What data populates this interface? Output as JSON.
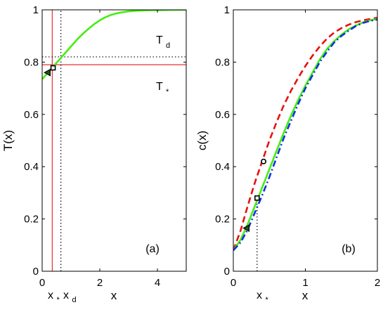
{
  "chart_data": [
    {
      "panel_label": "(a)",
      "type": "line",
      "xlabel": "x",
      "ylabel": "T(x)",
      "xlim": [
        0,
        5
      ],
      "ylim": [
        0,
        1
      ],
      "x_ticks": [
        0,
        2,
        4
      ],
      "y_ticks": [
        0,
        0.2,
        0.4,
        0.6,
        0.8,
        1
      ],
      "series": [
        {
          "name": "",
          "color": "#44ee11",
          "style": "solid",
          "x": [
            0,
            0.2,
            0.4,
            0.6,
            0.8,
            1,
            1.2,
            1.4,
            1.6,
            1.8,
            2,
            2.2,
            2.4,
            2.6,
            2.8,
            3,
            3.2,
            3.4,
            3.6,
            3.8,
            4,
            4.5,
            5
          ],
          "y": [
            0.735,
            0.76,
            0.785,
            0.81,
            0.835,
            0.86,
            0.885,
            0.907,
            0.927,
            0.945,
            0.96,
            0.972,
            0.981,
            0.987,
            0.991,
            0.994,
            0.996,
            0.997,
            0.998,
            0.999,
            0.999,
            1.0,
            1.0
          ]
        }
      ],
      "reference_lines": [
        {
          "orientation": "horizontal",
          "value": 0.79,
          "color": "#e03030",
          "style": "solid"
        },
        {
          "orientation": "vertical",
          "value": 0.35,
          "color": "#e03030",
          "style": "solid"
        },
        {
          "orientation": "horizontal",
          "value": 0.82,
          "color": "#000000",
          "style": "dotted"
        },
        {
          "orientation": "vertical",
          "value": 0.65,
          "color": "#000000",
          "style": "dotted"
        }
      ],
      "markers": [
        {
          "shape": "square",
          "x": 0.38,
          "y": 0.778
        },
        {
          "shape": "triangle",
          "x": 0.18,
          "y": 0.76
        }
      ],
      "annotations": {
        "T_d": {
          "base": "T",
          "sub": "d"
        },
        "T_star": {
          "base": "T",
          "sub": "*"
        },
        "x_star": {
          "base": "x",
          "sub": "*"
        },
        "x_d": {
          "base": "x",
          "sub": "d"
        }
      }
    },
    {
      "panel_label": "(b)",
      "type": "line",
      "xlabel": "x",
      "ylabel": "c(x)",
      "xlim": [
        0,
        2
      ],
      "ylim": [
        0,
        1
      ],
      "x_ticks": [
        0,
        1,
        2
      ],
      "y_ticks": [
        0,
        0.2,
        0.4,
        0.6,
        0.8,
        1
      ],
      "series": [
        {
          "name": "",
          "color": "#e81010",
          "style": "dashed",
          "x": [
            0,
            0.1,
            0.2,
            0.3,
            0.4,
            0.5,
            0.6,
            0.7,
            0.8,
            0.9,
            1,
            1.1,
            1.2,
            1.3,
            1.4,
            1.5,
            1.6,
            1.7,
            1.8,
            1.9,
            2
          ],
          "y": [
            0.08,
            0.155,
            0.25,
            0.34,
            0.42,
            0.5,
            0.57,
            0.635,
            0.69,
            0.74,
            0.785,
            0.825,
            0.86,
            0.89,
            0.913,
            0.93,
            0.943,
            0.953,
            0.96,
            0.965,
            0.97
          ]
        },
        {
          "name": "",
          "color": "#44ee11",
          "style": "solid",
          "x": [
            0,
            0.1,
            0.2,
            0.3,
            0.4,
            0.5,
            0.6,
            0.7,
            0.8,
            0.9,
            1,
            1.1,
            1.2,
            1.3,
            1.4,
            1.5,
            1.6,
            1.7,
            1.8,
            1.9,
            2
          ],
          "y": [
            0.08,
            0.12,
            0.18,
            0.25,
            0.32,
            0.39,
            0.46,
            0.53,
            0.595,
            0.655,
            0.71,
            0.76,
            0.81,
            0.85,
            0.88,
            0.905,
            0.925,
            0.94,
            0.952,
            0.96,
            0.965
          ]
        },
        {
          "name": "",
          "color": "#1030e0",
          "style": "dashdot",
          "x": [
            0,
            0.1,
            0.2,
            0.3,
            0.4,
            0.5,
            0.6,
            0.7,
            0.8,
            0.9,
            1,
            1.1,
            1.2,
            1.3,
            1.4,
            1.5,
            1.6,
            1.7,
            1.8,
            1.9,
            2
          ],
          "y": [
            0.08,
            0.11,
            0.16,
            0.225,
            0.29,
            0.36,
            0.435,
            0.51,
            0.575,
            0.64,
            0.7,
            0.75,
            0.8,
            0.84,
            0.875,
            0.9,
            0.92,
            0.938,
            0.95,
            0.958,
            0.963
          ]
        }
      ],
      "reference_lines": [
        {
          "orientation": "vertical",
          "value": 0.33,
          "color": "#000000",
          "style": "dotted",
          "y_max": 0.28
        }
      ],
      "markers": [
        {
          "shape": "circle",
          "x": 0.42,
          "y": 0.42
        },
        {
          "shape": "square",
          "x": 0.33,
          "y": 0.28
        },
        {
          "shape": "triangle",
          "x": 0.18,
          "y": 0.165
        }
      ],
      "annotations": {
        "x_star": {
          "base": "x",
          "sub": "*"
        }
      }
    }
  ]
}
